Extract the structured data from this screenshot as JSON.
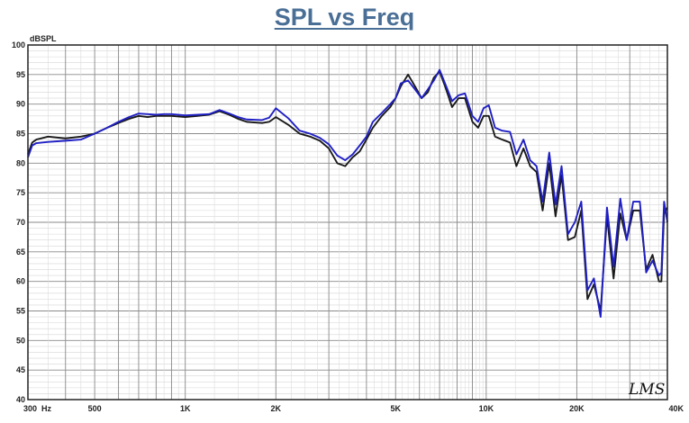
{
  "chart_data": {
    "type": "line",
    "title": "SPL vs Freq",
    "ylabel": "dBSPL",
    "xscale": "log",
    "xlim": [
      300,
      40000
    ],
    "ylim": [
      40,
      100
    ],
    "grid": true,
    "x_ticks": [
      {
        "value": 300,
        "label": "300"
      },
      {
        "value": 500,
        "label": "500"
      },
      {
        "value": 1000,
        "label": "1K"
      },
      {
        "value": 2000,
        "label": "2K"
      },
      {
        "value": 5000,
        "label": "5K"
      },
      {
        "value": 10000,
        "label": "10K"
      },
      {
        "value": 20000,
        "label": "20K"
      },
      {
        "value": 40000,
        "label": "40K"
      }
    ],
    "x_unit": "Hz",
    "y_ticks": [
      40,
      45,
      50,
      55,
      60,
      65,
      70,
      75,
      80,
      85,
      90,
      95,
      100
    ],
    "watermark": "LMS",
    "series": [
      {
        "color": "#1a1a1a",
        "points": [
          [
            300,
            81.5
          ],
          [
            310,
            83.5
          ],
          [
            320,
            84
          ],
          [
            350,
            84.5
          ],
          [
            400,
            84.2
          ],
          [
            450,
            84.5
          ],
          [
            500,
            85
          ],
          [
            550,
            86
          ],
          [
            600,
            86.8
          ],
          [
            650,
            87.5
          ],
          [
            700,
            88
          ],
          [
            750,
            87.8
          ],
          [
            800,
            88
          ],
          [
            850,
            88
          ],
          [
            900,
            88
          ],
          [
            1000,
            87.8
          ],
          [
            1100,
            88
          ],
          [
            1200,
            88.2
          ],
          [
            1300,
            88.8
          ],
          [
            1400,
            88.2
          ],
          [
            1500,
            87.5
          ],
          [
            1600,
            87
          ],
          [
            1800,
            86.8
          ],
          [
            1900,
            87
          ],
          [
            2000,
            87.8
          ],
          [
            2200,
            86.5
          ],
          [
            2400,
            85
          ],
          [
            2600,
            84.5
          ],
          [
            2800,
            83.8
          ],
          [
            3000,
            82.5
          ],
          [
            3200,
            80
          ],
          [
            3400,
            79.5
          ],
          [
            3600,
            81
          ],
          [
            3800,
            82
          ],
          [
            4000,
            84
          ],
          [
            4200,
            86
          ],
          [
            4500,
            88
          ],
          [
            4800,
            89.5
          ],
          [
            5000,
            91
          ],
          [
            5200,
            93
          ],
          [
            5500,
            95
          ],
          [
            5800,
            93
          ],
          [
            6100,
            91
          ],
          [
            6400,
            92
          ],
          [
            6700,
            94.5
          ],
          [
            7000,
            95.5
          ],
          [
            7300,
            93
          ],
          [
            7700,
            89.5
          ],
          [
            8100,
            91
          ],
          [
            8500,
            91
          ],
          [
            9000,
            87
          ],
          [
            9400,
            86
          ],
          [
            9800,
            88
          ],
          [
            10200,
            88
          ],
          [
            10700,
            84.5
          ],
          [
            11300,
            84
          ],
          [
            12000,
            83.5
          ],
          [
            12600,
            79.5
          ],
          [
            13300,
            82.5
          ],
          [
            14000,
            79.5
          ],
          [
            14700,
            78.5
          ],
          [
            15400,
            72
          ],
          [
            16200,
            80
          ],
          [
            17000,
            71
          ],
          [
            17800,
            78
          ],
          [
            18700,
            67
          ],
          [
            19700,
            67.5
          ],
          [
            20700,
            72
          ],
          [
            21700,
            57
          ],
          [
            22800,
            59.5
          ],
          [
            24000,
            55
          ],
          [
            25200,
            71
          ],
          [
            26500,
            60.5
          ],
          [
            27900,
            71.5
          ],
          [
            29300,
            67
          ],
          [
            30800,
            72
          ],
          [
            32400,
            72
          ],
          [
            34000,
            62
          ],
          [
            35700,
            64.5
          ],
          [
            37500,
            60
          ],
          [
            38200,
            60
          ],
          [
            39000,
            71.5
          ],
          [
            40000,
            72.5
          ]
        ]
      },
      {
        "color": "#1f1fc4",
        "points": [
          [
            300,
            81
          ],
          [
            310,
            83
          ],
          [
            320,
            83.4
          ],
          [
            350,
            83.6
          ],
          [
            400,
            83.8
          ],
          [
            450,
            84
          ],
          [
            500,
            85
          ],
          [
            550,
            86
          ],
          [
            600,
            87
          ],
          [
            650,
            87.8
          ],
          [
            700,
            88.4
          ],
          [
            750,
            88.3
          ],
          [
            800,
            88.2
          ],
          [
            850,
            88.3
          ],
          [
            900,
            88.3
          ],
          [
            1000,
            88.1
          ],
          [
            1100,
            88.2
          ],
          [
            1200,
            88.3
          ],
          [
            1300,
            89
          ],
          [
            1400,
            88.4
          ],
          [
            1500,
            87.8
          ],
          [
            1600,
            87.4
          ],
          [
            1800,
            87.3
          ],
          [
            1900,
            87.7
          ],
          [
            2000,
            89.3
          ],
          [
            2200,
            87.6
          ],
          [
            2400,
            85.5
          ],
          [
            2600,
            85
          ],
          [
            2800,
            84.3
          ],
          [
            3000,
            83.2
          ],
          [
            3200,
            81.3
          ],
          [
            3400,
            80.5
          ],
          [
            3600,
            81.5
          ],
          [
            3800,
            83
          ],
          [
            4000,
            84.5
          ],
          [
            4200,
            87
          ],
          [
            4500,
            88.5
          ],
          [
            4800,
            90
          ],
          [
            5000,
            91
          ],
          [
            5200,
            93.5
          ],
          [
            5500,
            94
          ],
          [
            5800,
            92.5
          ],
          [
            6100,
            91
          ],
          [
            6400,
            92.5
          ],
          [
            6700,
            94
          ],
          [
            7000,
            95.8
          ],
          [
            7300,
            93.5
          ],
          [
            7700,
            90.5
          ],
          [
            8100,
            91.5
          ],
          [
            8500,
            91.8
          ],
          [
            9000,
            88
          ],
          [
            9400,
            87
          ],
          [
            9800,
            89.3
          ],
          [
            10200,
            89.8
          ],
          [
            10700,
            86
          ],
          [
            11300,
            85.5
          ],
          [
            12000,
            85.3
          ],
          [
            12600,
            81.5
          ],
          [
            13300,
            84
          ],
          [
            14000,
            80.5
          ],
          [
            14700,
            79.5
          ],
          [
            15400,
            73.5
          ],
          [
            16200,
            81.8
          ],
          [
            17000,
            73
          ],
          [
            17800,
            79.5
          ],
          [
            18700,
            68
          ],
          [
            19700,
            70
          ],
          [
            20700,
            73.5
          ],
          [
            21700,
            58.5
          ],
          [
            22800,
            60.5
          ],
          [
            24000,
            54
          ],
          [
            25200,
            72.5
          ],
          [
            26500,
            62.5
          ],
          [
            27900,
            74
          ],
          [
            29300,
            67
          ],
          [
            30800,
            73.5
          ],
          [
            32400,
            73.5
          ],
          [
            34000,
            61.5
          ],
          [
            35700,
            63.5
          ],
          [
            37500,
            61
          ],
          [
            38200,
            61.5
          ],
          [
            39000,
            73.5
          ],
          [
            40000,
            70
          ]
        ]
      }
    ]
  }
}
